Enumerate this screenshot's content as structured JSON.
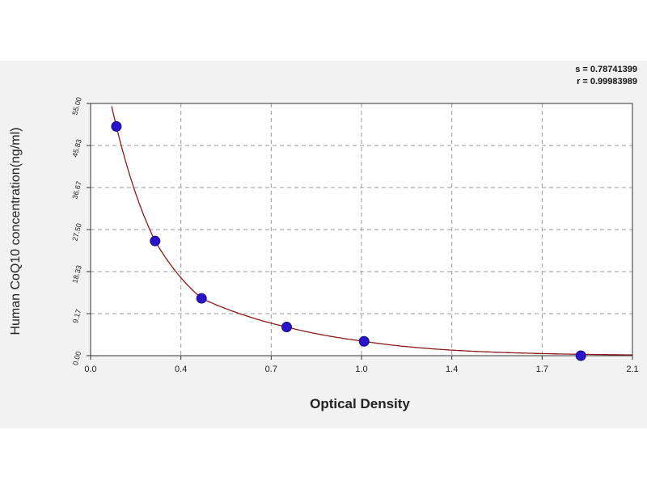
{
  "stats": {
    "s": "s = 0.78741399",
    "r": "r = 0.99983989"
  },
  "chart_data": {
    "type": "scatter",
    "title": "",
    "xlabel": "Optical Density",
    "ylabel": "Human CoQ10 concentration(ng/ml)",
    "xlim": [
      0.0,
      2.1
    ],
    "ylim": [
      0.0,
      55.0
    ],
    "x_ticks": [
      "0.0",
      "0.4",
      "0.7",
      "1.0",
      "1.4",
      "1.7",
      "2.1"
    ],
    "y_ticks": [
      "0.00",
      "9.17",
      "18.33",
      "27.50",
      "36.67",
      "45.83",
      "55.00"
    ],
    "grid": true,
    "points": [
      {
        "x": 0.1,
        "y": 50.0
      },
      {
        "x": 0.25,
        "y": 25.0
      },
      {
        "x": 0.43,
        "y": 12.5
      },
      {
        "x": 0.76,
        "y": 6.25
      },
      {
        "x": 1.06,
        "y": 3.13
      },
      {
        "x": 1.9,
        "y": 0.0
      }
    ],
    "curve": {
      "type": "fit",
      "color": "#8b1a1a"
    },
    "point_color": "#2a13c8"
  }
}
